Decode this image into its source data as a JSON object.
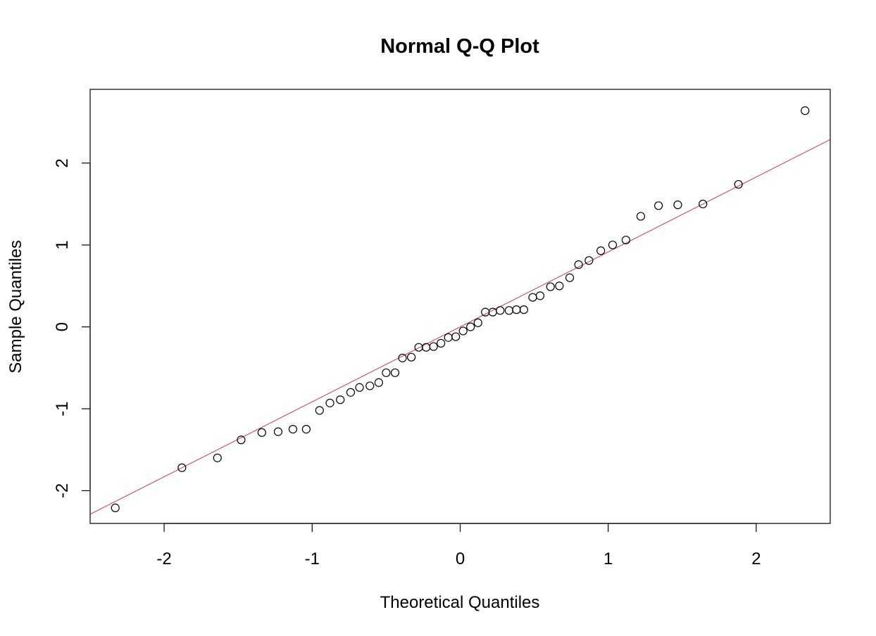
{
  "chart_data": {
    "type": "scatter",
    "title": "Normal Q-Q Plot",
    "xlabel": "Theoretical Quantiles",
    "ylabel": "Sample Quantiles",
    "xlim": [
      -2.5,
      2.5
    ],
    "ylim": [
      -2.4,
      2.9
    ],
    "x_ticks": [
      -2,
      -1,
      0,
      1,
      2
    ],
    "y_ticks": [
      -2,
      -1,
      0,
      1,
      2
    ],
    "grid": false,
    "reference_line": {
      "intercept": 0.0,
      "slope": 0.915,
      "color": "#cd3b4e"
    },
    "point_color": "#000000",
    "points": [
      {
        "x": -2.33,
        "y": -2.21
      },
      {
        "x": -1.88,
        "y": -1.72
      },
      {
        "x": -1.64,
        "y": -1.6
      },
      {
        "x": -1.48,
        "y": -1.38
      },
      {
        "x": -1.34,
        "y": -1.29
      },
      {
        "x": -1.23,
        "y": -1.28
      },
      {
        "x": -1.13,
        "y": -1.25
      },
      {
        "x": -1.04,
        "y": -1.25
      },
      {
        "x": -0.95,
        "y": -1.02
      },
      {
        "x": -0.88,
        "y": -0.93
      },
      {
        "x": -0.81,
        "y": -0.89
      },
      {
        "x": -0.74,
        "y": -0.8
      },
      {
        "x": -0.68,
        "y": -0.74
      },
      {
        "x": -0.61,
        "y": -0.72
      },
      {
        "x": -0.55,
        "y": -0.68
      },
      {
        "x": -0.5,
        "y": -0.56
      },
      {
        "x": -0.44,
        "y": -0.56
      },
      {
        "x": -0.39,
        "y": -0.38
      },
      {
        "x": -0.33,
        "y": -0.37
      },
      {
        "x": -0.28,
        "y": -0.25
      },
      {
        "x": -0.23,
        "y": -0.25
      },
      {
        "x": -0.18,
        "y": -0.24
      },
      {
        "x": -0.13,
        "y": -0.2
      },
      {
        "x": -0.08,
        "y": -0.13
      },
      {
        "x": -0.03,
        "y": -0.12
      },
      {
        "x": 0.02,
        "y": -0.05
      },
      {
        "x": 0.07,
        "y": 0.0
      },
      {
        "x": 0.12,
        "y": 0.05
      },
      {
        "x": 0.17,
        "y": 0.18
      },
      {
        "x": 0.22,
        "y": 0.18
      },
      {
        "x": 0.27,
        "y": 0.2
      },
      {
        "x": 0.33,
        "y": 0.2
      },
      {
        "x": 0.38,
        "y": 0.21
      },
      {
        "x": 0.43,
        "y": 0.21
      },
      {
        "x": 0.49,
        "y": 0.36
      },
      {
        "x": 0.54,
        "y": 0.38
      },
      {
        "x": 0.61,
        "y": 0.49
      },
      {
        "x": 0.67,
        "y": 0.5
      },
      {
        "x": 0.74,
        "y": 0.6
      },
      {
        "x": 0.8,
        "y": 0.76
      },
      {
        "x": 0.87,
        "y": 0.81
      },
      {
        "x": 0.95,
        "y": 0.93
      },
      {
        "x": 1.03,
        "y": 1.0
      },
      {
        "x": 1.12,
        "y": 1.06
      },
      {
        "x": 1.22,
        "y": 1.35
      },
      {
        "x": 1.34,
        "y": 1.48
      },
      {
        "x": 1.47,
        "y": 1.49
      },
      {
        "x": 1.64,
        "y": 1.5
      },
      {
        "x": 1.88,
        "y": 1.74
      },
      {
        "x": 2.33,
        "y": 2.64
      }
    ]
  }
}
